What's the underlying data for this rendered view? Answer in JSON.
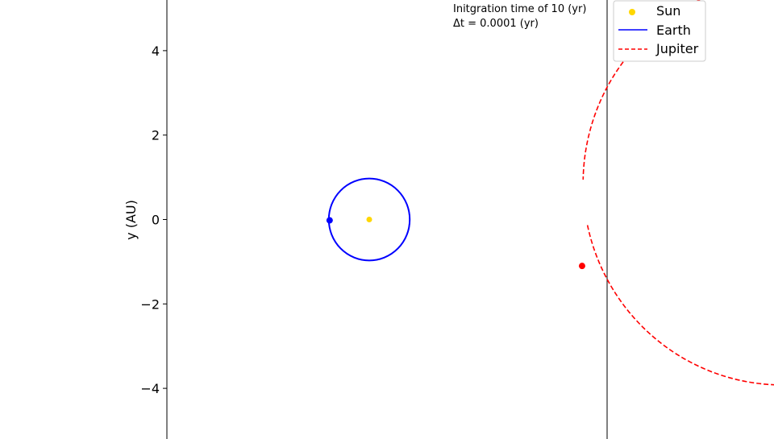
{
  "chart_data": {
    "type": "line",
    "xlabel": "",
    "ylabel": "y (AU)",
    "ylim": [
      -5.2,
      5.2
    ],
    "xlim": [
      -4.85,
      5.7
    ],
    "yticks": [
      -4,
      -2,
      0,
      2,
      4
    ],
    "yticklabels": [
      "−4",
      "−2",
      "0",
      "2",
      "4"
    ],
    "grid": false,
    "annotations": [
      "Initgration time of 10 (yr)",
      "Δt = 0.0001 (yr)"
    ],
    "legend": {
      "placement": "outside-top-right",
      "entries": [
        {
          "label": "Sun",
          "marker": "dot",
          "color": "#ffd700"
        },
        {
          "label": "Earth",
          "line": "solid",
          "color": "#0000ff"
        },
        {
          "label": "Jupiter",
          "line": "dashed",
          "color": "#ff0000"
        }
      ]
    },
    "series": [
      {
        "name": "Sun",
        "kind": "point",
        "color": "#ffd700",
        "x": 0.0,
        "y": 0.0
      },
      {
        "name": "Earth",
        "kind": "orbit",
        "style": "solid",
        "color": "#0000ff",
        "center": [
          0.0,
          0.0
        ],
        "radius": 0.97,
        "current": [
          -0.95,
          -0.02
        ]
      },
      {
        "name": "Jupiter",
        "kind": "orbit",
        "style": "dashed",
        "color": "#ff0000",
        "center": [
          0.45,
          -0.05
        ],
        "radius": 4.78,
        "start_angle_deg": -1,
        "sweep_deg": 347,
        "current": [
          5.1,
          -1.1
        ]
      }
    ]
  }
}
